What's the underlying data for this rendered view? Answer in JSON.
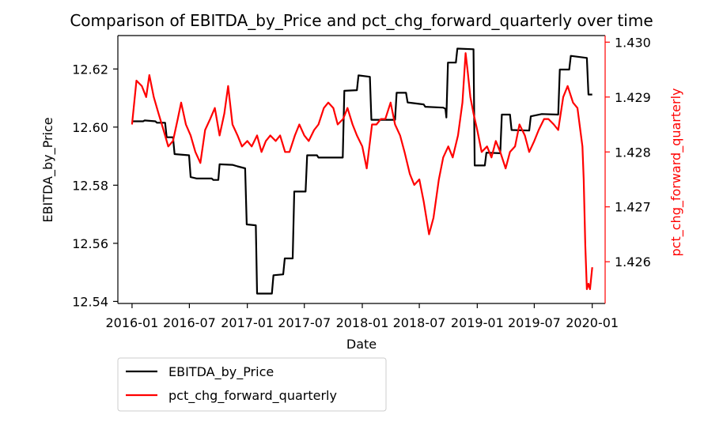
{
  "chart_data": {
    "type": "line",
    "title": "Comparison of EBITDA_by_Price and pct_chg_forward_quarterly over time",
    "xlabel": "Date",
    "ylabel_left": "EBITDA_by_Price",
    "ylabel_right": "pct_chg_forward_quarterly",
    "x_ticks": [
      "2016-01",
      "2016-07",
      "2017-01",
      "2017-07",
      "2018-01",
      "2018-07",
      "2019-01",
      "2019-07",
      "2020-01"
    ],
    "y_left_ticks": [
      "12.54",
      "12.56",
      "12.58",
      "12.60",
      "12.62"
    ],
    "y_right_ticks": [
      "1.426",
      "1.427",
      "1.428",
      "1.429",
      "1.430"
    ],
    "ylim_left": [
      12.5393,
      12.6315
    ],
    "ylim_right": [
      1.42524,
      1.43012
    ],
    "xlim": [
      "2015-11-17",
      "2020-02-11"
    ],
    "grid": false,
    "legend_position": "below-left",
    "series": [
      {
        "name": "EBITDA_by_Price",
        "axis": "left",
        "color": "#000000",
        "points": [
          [
            "2016-01-01",
            12.602
          ],
          [
            "2016-02-05",
            12.602
          ],
          [
            "2016-02-10",
            12.6023
          ],
          [
            "2016-03-15",
            12.602
          ],
          [
            "2016-03-20",
            12.6015
          ],
          [
            "2016-04-15",
            12.6015
          ],
          [
            "2016-04-20",
            12.5965
          ],
          [
            "2016-05-10",
            12.5965
          ],
          [
            "2016-05-15",
            12.5907
          ],
          [
            "2016-06-30",
            12.5903
          ],
          [
            "2016-07-05",
            12.5828
          ],
          [
            "2016-07-25",
            12.5823
          ],
          [
            "2016-09-10",
            12.5823
          ],
          [
            "2016-09-15",
            12.5818
          ],
          [
            "2016-10-01",
            12.5818
          ],
          [
            "2016-10-05",
            12.5872
          ],
          [
            "2016-11-15",
            12.587
          ],
          [
            "2016-12-01",
            12.5865
          ],
          [
            "2016-12-25",
            12.5858
          ],
          [
            "2016-12-30",
            12.5665
          ],
          [
            "2017-01-28",
            12.5662
          ],
          [
            "2017-02-01",
            12.5427
          ],
          [
            "2017-03-20",
            12.5427
          ],
          [
            "2017-03-25",
            12.549
          ],
          [
            "2017-04-25",
            12.5493
          ],
          [
            "2017-04-30",
            12.5548
          ],
          [
            "2017-05-25",
            12.5548
          ],
          [
            "2017-05-30",
            12.5778
          ],
          [
            "2017-07-05",
            12.5778
          ],
          [
            "2017-07-10",
            12.5903
          ],
          [
            "2017-08-10",
            12.5903
          ],
          [
            "2017-08-15",
            12.5895
          ],
          [
            "2017-10-31",
            12.5895
          ],
          [
            "2017-11-05",
            12.6125
          ],
          [
            "2017-12-15",
            12.6127
          ],
          [
            "2017-12-20",
            12.6178
          ],
          [
            "2018-01-25",
            12.6173
          ],
          [
            "2018-01-30",
            12.6025
          ],
          [
            "2018-04-15",
            12.6025
          ],
          [
            "2018-04-20",
            12.6118
          ],
          [
            "2018-05-20",
            12.6118
          ],
          [
            "2018-05-25",
            12.6085
          ],
          [
            "2018-07-15",
            12.6078
          ],
          [
            "2018-07-20",
            12.607
          ],
          [
            "2018-09-15",
            12.6067
          ],
          [
            "2018-09-22",
            12.6063
          ],
          [
            "2018-09-25",
            12.6033
          ],
          [
            "2018-09-30",
            12.6222
          ],
          [
            "2018-10-25",
            12.6222
          ],
          [
            "2018-10-30",
            12.627
          ],
          [
            "2018-12-20",
            12.6268
          ],
          [
            "2018-12-24",
            12.5868
          ],
          [
            "2019-01-25",
            12.5868
          ],
          [
            "2019-01-30",
            12.5912
          ],
          [
            "2019-03-15",
            12.591
          ],
          [
            "2019-03-20",
            12.6043
          ],
          [
            "2019-04-15",
            12.6043
          ],
          [
            "2019-04-20",
            12.599
          ],
          [
            "2019-06-15",
            12.5988
          ],
          [
            "2019-06-20",
            12.6037
          ],
          [
            "2019-07-25",
            12.6045
          ],
          [
            "2019-09-15",
            12.6043
          ],
          [
            "2019-09-20",
            12.6198
          ],
          [
            "2019-10-20",
            12.6198
          ],
          [
            "2019-10-25",
            12.6245
          ],
          [
            "2019-12-15",
            12.6238
          ],
          [
            "2019-12-20",
            12.6112
          ],
          [
            "2020-01-01",
            12.6112
          ]
        ]
      },
      {
        "name": "pct_chg_forward_quarterly",
        "axis": "right",
        "color": "#ff0000",
        "points": [
          [
            "2016-01-01",
            1.4285
          ],
          [
            "2016-01-15",
            1.4293
          ],
          [
            "2016-02-01",
            1.4292
          ],
          [
            "2016-02-15",
            1.429
          ],
          [
            "2016-02-25",
            1.4294
          ],
          [
            "2016-03-10",
            1.429
          ],
          [
            "2016-03-25",
            1.4287
          ],
          [
            "2016-04-10",
            1.4284
          ],
          [
            "2016-04-25",
            1.4281
          ],
          [
            "2016-05-10",
            1.4282
          ],
          [
            "2016-05-25",
            1.4286
          ],
          [
            "2016-06-05",
            1.4289
          ],
          [
            "2016-06-20",
            1.4285
          ],
          [
            "2016-07-05",
            1.4283
          ],
          [
            "2016-07-20",
            1.428
          ],
          [
            "2016-08-05",
            1.4278
          ],
          [
            "2016-08-20",
            1.4284
          ],
          [
            "2016-09-05",
            1.4286
          ],
          [
            "2016-09-20",
            1.4288
          ],
          [
            "2016-10-05",
            1.4283
          ],
          [
            "2016-10-20",
            1.4287
          ],
          [
            "2016-11-01",
            1.4292
          ],
          [
            "2016-11-15",
            1.4285
          ],
          [
            "2016-12-01",
            1.4283
          ],
          [
            "2016-12-15",
            1.4281
          ],
          [
            "2017-01-01",
            1.4282
          ],
          [
            "2017-01-15",
            1.4281
          ],
          [
            "2017-02-01",
            1.4283
          ],
          [
            "2017-02-15",
            1.428
          ],
          [
            "2017-03-01",
            1.4282
          ],
          [
            "2017-03-15",
            1.4283
          ],
          [
            "2017-04-01",
            1.4282
          ],
          [
            "2017-04-15",
            1.4283
          ],
          [
            "2017-05-01",
            1.428
          ],
          [
            "2017-05-15",
            1.428
          ],
          [
            "2017-06-01",
            1.4283
          ],
          [
            "2017-06-15",
            1.4285
          ],
          [
            "2017-07-01",
            1.4283
          ],
          [
            "2017-07-15",
            1.4282
          ],
          [
            "2017-08-01",
            1.4284
          ],
          [
            "2017-08-15",
            1.4285
          ],
          [
            "2017-09-01",
            1.4288
          ],
          [
            "2017-09-15",
            1.4289
          ],
          [
            "2017-10-01",
            1.4288
          ],
          [
            "2017-10-15",
            1.4285
          ],
          [
            "2017-11-01",
            1.4286
          ],
          [
            "2017-11-15",
            1.4288
          ],
          [
            "2017-12-01",
            1.4285
          ],
          [
            "2017-12-15",
            1.4283
          ],
          [
            "2018-01-01",
            1.4281
          ],
          [
            "2018-01-15",
            1.4277
          ],
          [
            "2018-02-01",
            1.4285
          ],
          [
            "2018-02-15",
            1.4285
          ],
          [
            "2018-03-01",
            1.4286
          ],
          [
            "2018-03-15",
            1.4286
          ],
          [
            "2018-04-01",
            1.4289
          ],
          [
            "2018-04-15",
            1.4285
          ],
          [
            "2018-05-01",
            1.4283
          ],
          [
            "2018-05-15",
            1.428
          ],
          [
            "2018-06-01",
            1.4276
          ],
          [
            "2018-06-15",
            1.4274
          ],
          [
            "2018-07-01",
            1.4275
          ],
          [
            "2018-07-15",
            1.4271
          ],
          [
            "2018-08-01",
            1.4265
          ],
          [
            "2018-08-15",
            1.4268
          ],
          [
            "2018-09-01",
            1.4275
          ],
          [
            "2018-09-15",
            1.4279
          ],
          [
            "2018-10-01",
            1.4281
          ],
          [
            "2018-10-15",
            1.4279
          ],
          [
            "2018-11-01",
            1.4283
          ],
          [
            "2018-11-15",
            1.4289
          ],
          [
            "2018-11-25",
            1.4298
          ],
          [
            "2018-12-01",
            1.4295
          ],
          [
            "2018-12-10",
            1.429
          ],
          [
            "2018-12-20",
            1.4287
          ],
          [
            "2019-01-01",
            1.4284
          ],
          [
            "2019-01-15",
            1.428
          ],
          [
            "2019-02-01",
            1.4281
          ],
          [
            "2019-02-15",
            1.4279
          ],
          [
            "2019-03-01",
            1.4282
          ],
          [
            "2019-03-15",
            1.428
          ],
          [
            "2019-04-01",
            1.4277
          ],
          [
            "2019-04-15",
            1.428
          ],
          [
            "2019-05-01",
            1.4281
          ],
          [
            "2019-05-15",
            1.4285
          ],
          [
            "2019-06-01",
            1.4283
          ],
          [
            "2019-06-15",
            1.428
          ],
          [
            "2019-07-01",
            1.4282
          ],
          [
            "2019-07-15",
            1.4284
          ],
          [
            "2019-08-01",
            1.4286
          ],
          [
            "2019-08-15",
            1.4286
          ],
          [
            "2019-09-01",
            1.4285
          ],
          [
            "2019-09-15",
            1.4284
          ],
          [
            "2019-10-01",
            1.429
          ],
          [
            "2019-10-15",
            1.4292
          ],
          [
            "2019-11-01",
            1.4289
          ],
          [
            "2019-11-15",
            1.4288
          ],
          [
            "2019-12-01",
            1.4281
          ],
          [
            "2019-12-05",
            1.4275
          ],
          [
            "2019-12-10",
            1.4263
          ],
          [
            "2019-12-15",
            1.4255
          ],
          [
            "2019-12-20",
            1.4256
          ],
          [
            "2019-12-25",
            1.4255
          ],
          [
            "2020-01-01",
            1.4259
          ]
        ]
      }
    ]
  }
}
